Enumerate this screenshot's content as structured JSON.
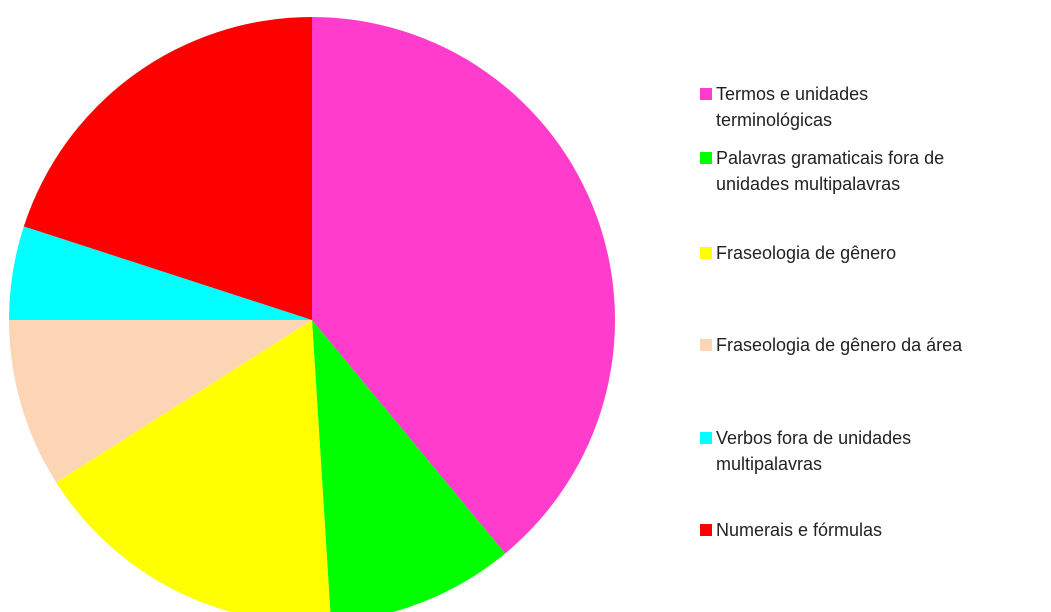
{
  "chart_data": {
    "type": "pie",
    "categories": [
      "Termos e unidades terminológicas",
      "Palavras gramaticais fora de unidades multipalavras",
      "Fraseologia de gênero",
      "Fraseologia de gênero da área",
      "Verbos fora de unidades multipalavras",
      "Numerais e fórmulas"
    ],
    "values": [
      39,
      10,
      17,
      9,
      5,
      20
    ],
    "colors": [
      "#ff3ccc",
      "#00ff00",
      "#ffff00",
      "#fcd5b5",
      "#00ffff",
      "#ff0000"
    ],
    "legend": "right"
  }
}
